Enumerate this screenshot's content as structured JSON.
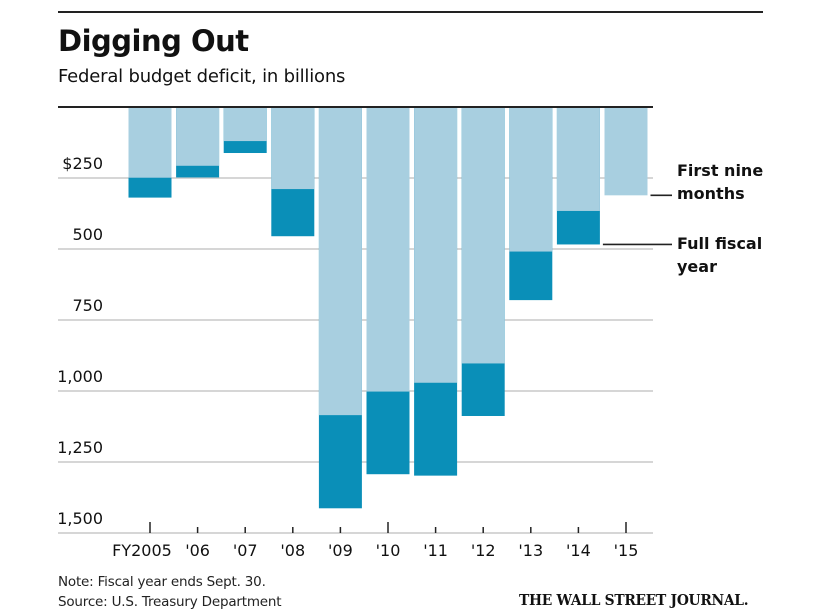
{
  "header": {
    "title": "Digging Out",
    "subtitle": "Federal budget deficit, in billions"
  },
  "footer": {
    "note": "Note: Fiscal year ends Sept. 30.",
    "source": "Source: U.S. Treasury Department",
    "brand": "THE WALL STREET JOURNAL."
  },
  "colors": {
    "first_nine_months": "#a8cfe0",
    "full_fiscal_year": "#0a8fb8",
    "gridline": "#c8c8c8",
    "axis": "#222222"
  },
  "chart_data": {
    "type": "bar",
    "title": "Digging Out",
    "subtitle": "Federal budget deficit, in billions",
    "xlabel": "",
    "ylabel": "",
    "orientation": "downward",
    "ylim": [
      0,
      1500
    ],
    "yticks": [
      250,
      500,
      750,
      1000,
      1250,
      1500
    ],
    "ytick_labels": [
      "$250",
      "500",
      "750",
      "1,000",
      "1,250",
      "1,500"
    ],
    "categories": [
      "FY2005",
      "'06",
      "'07",
      "'08",
      "'09",
      "'10",
      "'11",
      "'12",
      "'13",
      "'14",
      "'15"
    ],
    "major_ticks": [
      "FY2005",
      "'10",
      "'15"
    ],
    "grid": true,
    "stacked_overlay": true,
    "series": [
      {
        "name": "First nine months",
        "legend_lines": [
          "First nine",
          "months"
        ],
        "values": [
          249,
          207,
          120,
          289,
          1085,
          1002,
          971,
          903,
          509,
          366,
          311
        ]
      },
      {
        "name": "Full fiscal year",
        "legend_lines": [
          "Full fiscal",
          "year"
        ],
        "values": [
          319,
          248,
          162,
          455,
          1413,
          1293,
          1298,
          1088,
          680,
          484,
          null
        ]
      }
    ],
    "legend_position": "right",
    "legend_anchor_category": "'14 and '15"
  }
}
